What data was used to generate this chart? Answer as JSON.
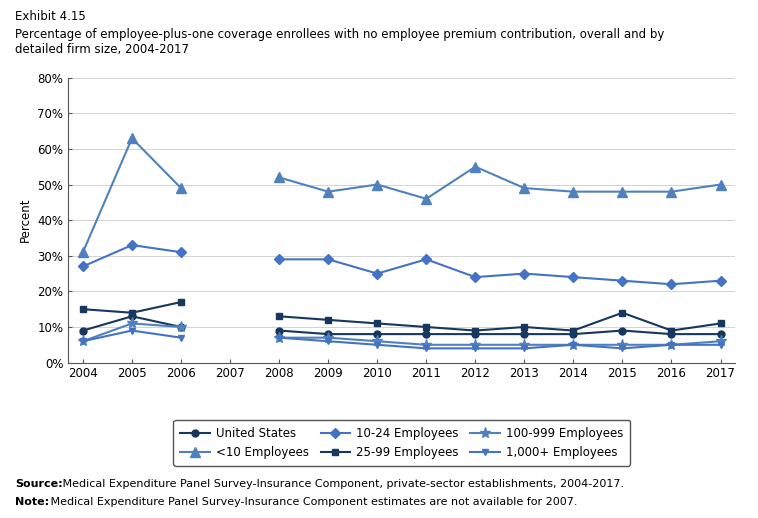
{
  "title_line1": "Exhibit 4.15",
  "title_line2": "Percentage of employee-plus-one coverage enrollees with no employee premium contribution, overall and by\ndetailed firm size, 2004-2017",
  "ylabel": "Percent",
  "source_bold": "Source:",
  "source_rest": " Medical Expenditure Panel Survey-Insurance Component, private-sector establishments, 2004-2017.",
  "note_bold": "Note:",
  "note_rest": " Medical Expenditure Panel Survey-Insurance Component estimates are not available for 2007.",
  "years": [
    2004,
    2005,
    2006,
    2007,
    2008,
    2009,
    2010,
    2011,
    2012,
    2013,
    2014,
    2015,
    2016,
    2017
  ],
  "series": [
    {
      "name": "United States",
      "values": [
        9,
        13,
        10,
        null,
        9,
        8,
        8,
        8,
        8,
        8,
        8,
        9,
        8,
        8
      ],
      "color": "#17375e",
      "marker": "o",
      "markersize": 5,
      "linewidth": 1.5
    },
    {
      "name": "<10 Employees",
      "values": [
        31,
        63,
        49,
        null,
        52,
        48,
        50,
        46,
        55,
        49,
        48,
        48,
        48,
        50
      ],
      "color": "#4f81bd",
      "marker": "^",
      "markersize": 7,
      "linewidth": 1.5
    },
    {
      "name": "10-24 Employees",
      "values": [
        27,
        33,
        31,
        null,
        29,
        29,
        25,
        29,
        24,
        25,
        24,
        23,
        22,
        23
      ],
      "color": "#4472c4",
      "marker": "D",
      "markersize": 5,
      "linewidth": 1.5
    },
    {
      "name": "25-99 Employees",
      "values": [
        15,
        14,
        17,
        null,
        13,
        12,
        11,
        10,
        9,
        10,
        9,
        14,
        9,
        11
      ],
      "color": "#17375e",
      "marker": "s",
      "markersize": 5,
      "linewidth": 1.5
    },
    {
      "name": "100-999 Employees",
      "values": [
        6,
        11,
        10,
        null,
        7,
        7,
        6,
        5,
        5,
        5,
        5,
        5,
        5,
        6
      ],
      "color": "#4f81bd",
      "marker": "*",
      "markersize": 8,
      "linewidth": 1.5
    },
    {
      "name": "1,000+ Employees",
      "values": [
        6,
        9,
        7,
        null,
        7,
        6,
        5,
        4,
        4,
        4,
        5,
        4,
        5,
        5
      ],
      "color": "#4472c4",
      "marker": "v",
      "markersize": 5,
      "linewidth": 1.5
    }
  ],
  "ylim": [
    0,
    80
  ],
  "yticks": [
    0,
    10,
    20,
    30,
    40,
    50,
    60,
    70,
    80
  ],
  "background_color": "#ffffff"
}
